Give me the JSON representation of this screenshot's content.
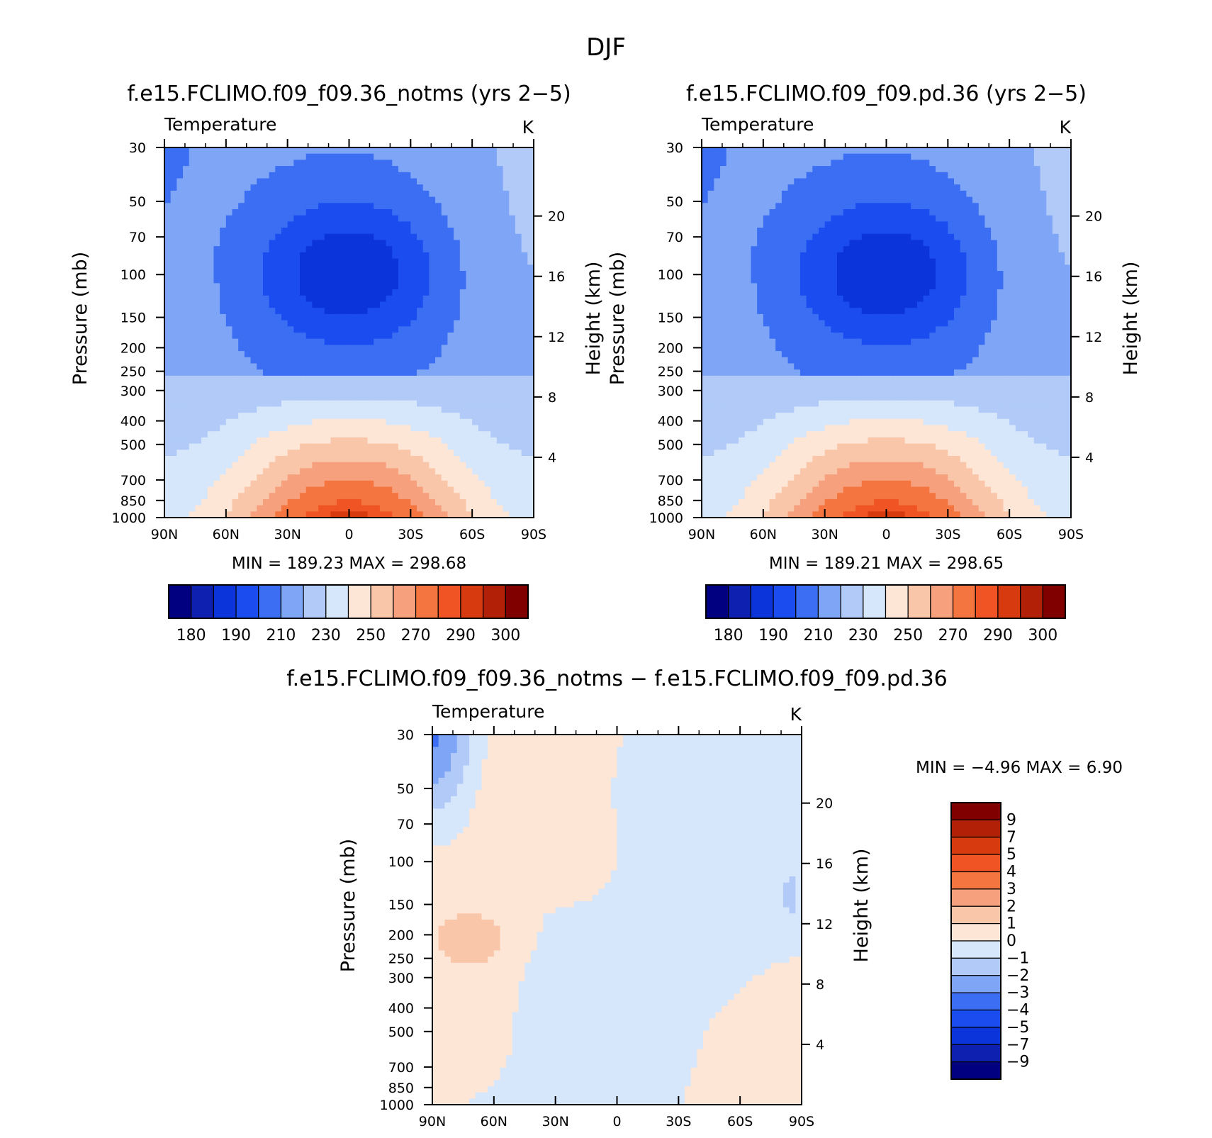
{
  "page_title": "DJF",
  "palettes": {
    "temperature": [
      "#000080",
      "#0d20b0",
      "#0b34da",
      "#1a4cf0",
      "#3b6ef2",
      "#7fa6f6",
      "#b1caf8",
      "#d6e6fb",
      "#fde6d6",
      "#fac6aa",
      "#f6a07e",
      "#f4753f",
      "#f15424",
      "#d83a10",
      "#b32008",
      "#800000"
    ],
    "difference": [
      "#000080",
      "#0d20b0",
      "#0b34da",
      "#1a4cf0",
      "#3b6ef2",
      "#7fa6f6",
      "#b1caf8",
      "#d6e6fb",
      "#fde6d6",
      "#fac6aa",
      "#f6a07e",
      "#f4753f",
      "#f15424",
      "#d83a10",
      "#b32008",
      "#800000"
    ]
  },
  "chart_data": [
    {
      "type": "heatmap",
      "title": "f.e15.FCLIMO.f09_f09.36_notms (yrs 2−5)",
      "left_label": "Temperature",
      "right_label": "K",
      "xlabel": "",
      "ylabel": "Pressure (mb)",
      "ylabel_right": "Height (km)",
      "x_ticks": [
        "90N",
        "60N",
        "30N",
        "0",
        "30S",
        "60S",
        "90S"
      ],
      "y_ticks": [
        "30",
        "50",
        "70",
        "100",
        "150",
        "200",
        "250",
        "300",
        "400",
        "500",
        "700",
        "850",
        "1000"
      ],
      "y_ticks_right": [
        "20",
        "16",
        "12",
        "8",
        "4"
      ],
      "ylim": [
        1000,
        30
      ],
      "log_y": true,
      "min_text": "MIN =  189.23   MAX =  298.68",
      "min": 189.23,
      "max": 298.68,
      "colorbar_labels": [
        "180",
        "190",
        "210",
        "230",
        "250",
        "270",
        "290",
        "300"
      ],
      "field": "temperature"
    },
    {
      "type": "heatmap",
      "title": "f.e15.FCLIMO.f09_f09.pd.36 (yrs 2−5)",
      "left_label": "Temperature",
      "right_label": "K",
      "xlabel": "",
      "ylabel": "Pressure (mb)",
      "ylabel_right": "Height (km)",
      "x_ticks": [
        "90N",
        "60N",
        "30N",
        "0",
        "30S",
        "60S",
        "90S"
      ],
      "y_ticks": [
        "30",
        "50",
        "70",
        "100",
        "150",
        "200",
        "250",
        "300",
        "400",
        "500",
        "700",
        "850",
        "1000"
      ],
      "y_ticks_right": [
        "20",
        "16",
        "12",
        "8",
        "4"
      ],
      "ylim": [
        1000,
        30
      ],
      "log_y": true,
      "min_text": "MIN =  189.21   MAX =  298.65",
      "min": 189.21,
      "max": 298.65,
      "colorbar_labels": [
        "180",
        "190",
        "210",
        "230",
        "250",
        "270",
        "290",
        "300"
      ],
      "field": "temperature"
    },
    {
      "type": "heatmap",
      "title": "f.e15.FCLIMO.f09_f09.36_notms − f.e15.FCLIMO.f09_f09.pd.36",
      "left_label": "Temperature",
      "right_label": "K",
      "xlabel": "",
      "ylabel": "Pressure (mb)",
      "ylabel_right": "Height (km)",
      "x_ticks": [
        "90N",
        "60N",
        "30N",
        "0",
        "30S",
        "60S",
        "90S"
      ],
      "y_ticks": [
        "30",
        "50",
        "70",
        "100",
        "150",
        "200",
        "250",
        "300",
        "400",
        "500",
        "700",
        "850",
        "1000"
      ],
      "y_ticks_right": [
        "20",
        "16",
        "12",
        "8",
        "4"
      ],
      "ylim": [
        1000,
        30
      ],
      "log_y": true,
      "min_text": "MIN =    −4.96    MAX =     6.90",
      "min": -4.96,
      "max": 6.9,
      "colorbar_labels": [
        "9",
        "7",
        "5",
        "4",
        "3",
        "2",
        "1",
        "0",
        "−1",
        "−2",
        "−3",
        "−4",
        "−5",
        "−7",
        "−9"
      ],
      "field": "difference"
    }
  ]
}
